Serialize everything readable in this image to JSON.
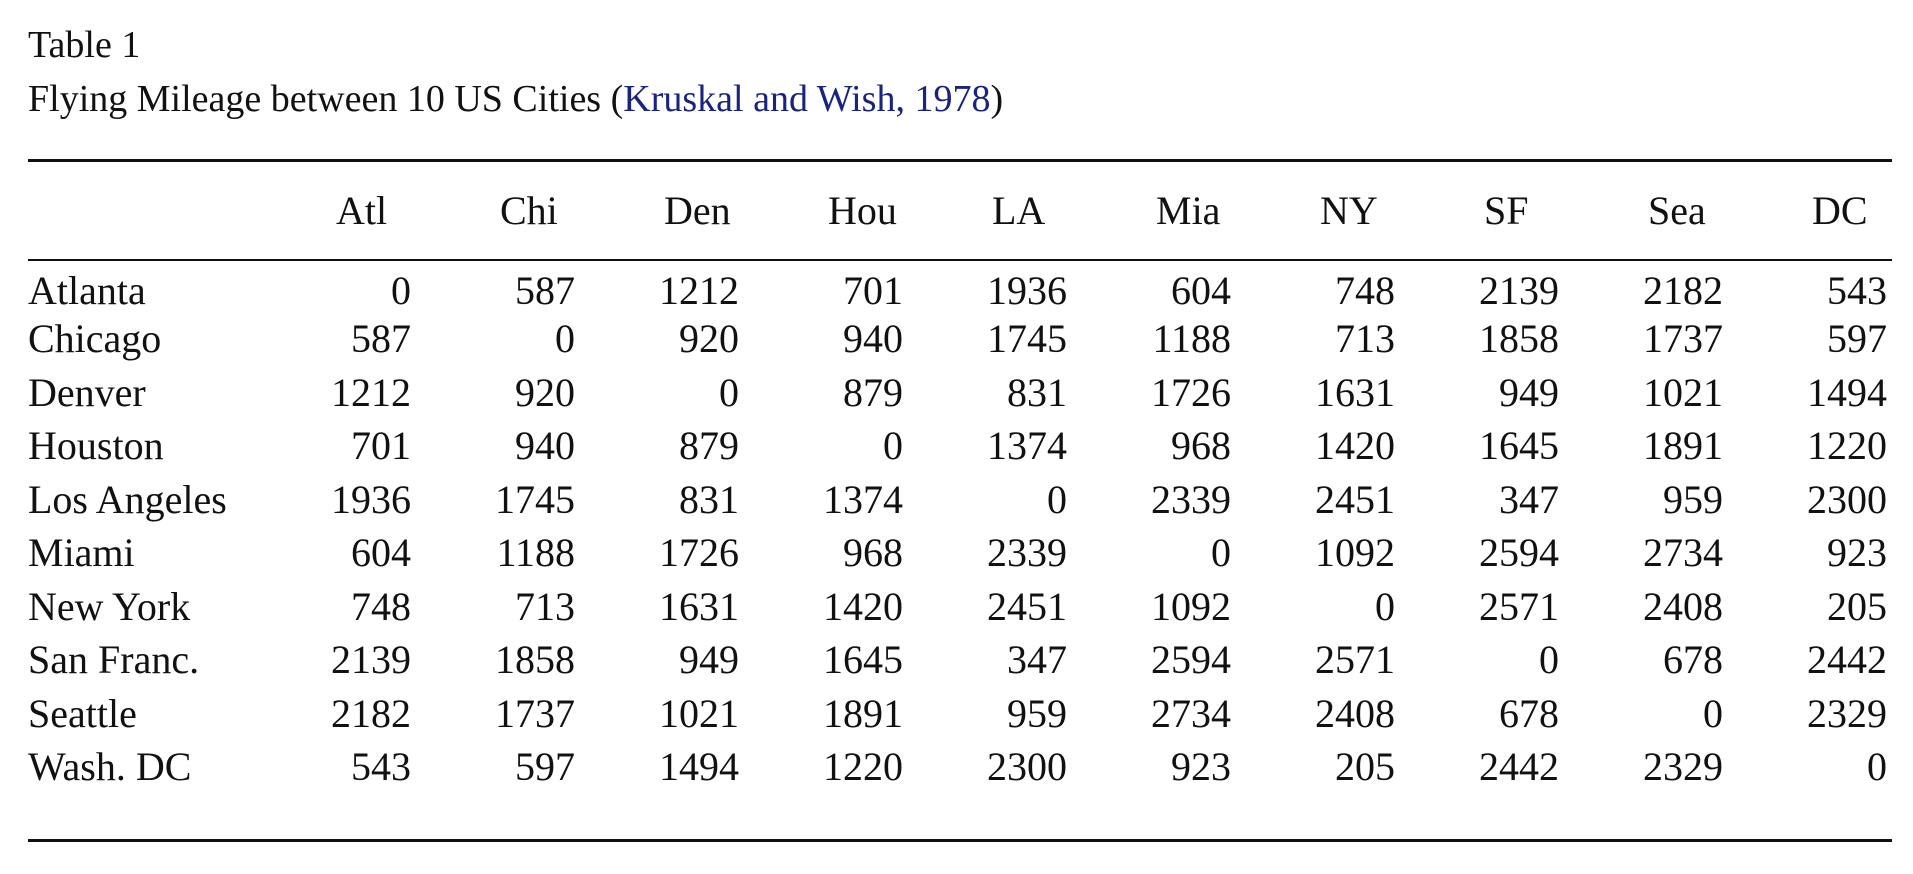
{
  "caption": {
    "label": "Table 1",
    "title_prefix": "Flying Mileage between 10 US Cities (",
    "citation": "Kruskal and Wish, 1978",
    "title_suffix": ")"
  },
  "table": {
    "columns": [
      "Atl",
      "Chi",
      "Den",
      "Hou",
      "LA",
      "Mia",
      "NY",
      "SF",
      "Sea",
      "DC"
    ],
    "rows": [
      {
        "name": "Atlanta",
        "values": [
          "0",
          "587",
          "1212",
          "701",
          "1936",
          "604",
          "748",
          "2139",
          "2182",
          "543"
        ]
      },
      {
        "name": "Chicago",
        "values": [
          "587",
          "0",
          "920",
          "940",
          "1745",
          "1188",
          "713",
          "1858",
          "1737",
          "597"
        ]
      },
      {
        "name": "Denver",
        "values": [
          "1212",
          "920",
          "0",
          "879",
          "831",
          "1726",
          "1631",
          "949",
          "1021",
          "1494"
        ]
      },
      {
        "name": "Houston",
        "values": [
          "701",
          "940",
          "879",
          "0",
          "1374",
          "968",
          "1420",
          "1645",
          "1891",
          "1220"
        ]
      },
      {
        "name": "Los Angeles",
        "values": [
          "1936",
          "1745",
          "831",
          "1374",
          "0",
          "2339",
          "2451",
          "347",
          "959",
          "2300"
        ]
      },
      {
        "name": "Miami",
        "values": [
          "604",
          "1188",
          "1726",
          "968",
          "2339",
          "0",
          "1092",
          "2594",
          "2734",
          "923"
        ]
      },
      {
        "name": "New York",
        "values": [
          "748",
          "713",
          "1631",
          "1420",
          "2451",
          "1092",
          "0",
          "2571",
          "2408",
          "205"
        ]
      },
      {
        "name": "San Franc.",
        "values": [
          "2139",
          "1858",
          "949",
          "1645",
          "347",
          "2594",
          "2571",
          "0",
          "678",
          "2442"
        ]
      },
      {
        "name": "Seattle",
        "values": [
          "2182",
          "1737",
          "1021",
          "1891",
          "959",
          "2734",
          "2408",
          "678",
          "0",
          "2329"
        ]
      },
      {
        "name": "Wash. DC",
        "values": [
          "543",
          "597",
          "1494",
          "1220",
          "2300",
          "923",
          "205",
          "2442",
          "2329",
          "0"
        ]
      }
    ]
  },
  "colors": {
    "text": "#111111",
    "citation_link": "#1a237e",
    "background": "#ffffff"
  }
}
